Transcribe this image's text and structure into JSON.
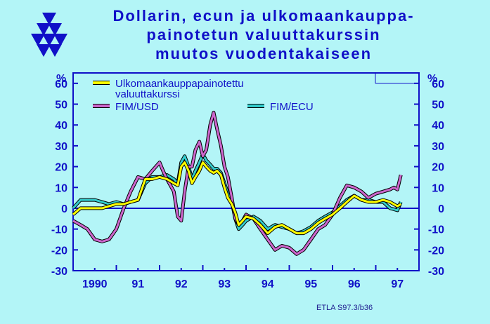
{
  "title": {
    "line1": "Dollarin, ecun ja ulkomaankauppa-",
    "line2": "painotetun valuuttakurssin",
    "line3": "muutos vuodentakaiseen"
  },
  "credit": "ETLA S97.3/b36",
  "colors": {
    "background": "#b3f5f7",
    "frame": "#1010c8",
    "title": "#1010c8",
    "weighted": "#ffff00",
    "usd": "#cc66cc",
    "ecu": "#33cccc"
  },
  "chart_data": {
    "type": "line",
    "y_unit_left": "%",
    "y_unit_right": "%",
    "ylim": [
      -30,
      65
    ],
    "yticks": [
      -30,
      -20,
      -10,
      0,
      10,
      20,
      30,
      40,
      50,
      60
    ],
    "ytick_labels": [
      "-30",
      "-20",
      "-10",
      "0",
      "10",
      "20",
      "30",
      "40",
      "50",
      "60"
    ],
    "xlim": [
      1989.5,
      1997.5
    ],
    "xtick_labels": [
      "1990",
      "91",
      "92",
      "93",
      "94",
      "95",
      "96",
      "97"
    ],
    "xtick_positions": [
      1990,
      1991,
      1992,
      1993,
      1994,
      1995,
      1996,
      1997
    ],
    "legend": [
      {
        "name": "Ulkomaankauppapainotettu",
        "name2": "valuuttakurssi",
        "key": "weighted"
      },
      {
        "name": "FIM/USD",
        "key": "usd"
      },
      {
        "name": "FIM/ECU",
        "key": "ecu"
      }
    ],
    "series": [
      {
        "key": "weighted",
        "name": "Ulkomaankauppapainotettu valuuttakurssi",
        "color": "#ffff00",
        "x": [
          1989.5,
          1989.67,
          1989.83,
          1990.0,
          1990.17,
          1990.33,
          1990.5,
          1990.67,
          1990.83,
          1991.0,
          1991.17,
          1991.33,
          1991.5,
          1991.67,
          1991.83,
          1991.92,
          1992.0,
          1992.08,
          1992.17,
          1992.25,
          1992.33,
          1992.42,
          1992.5,
          1992.58,
          1992.67,
          1992.75,
          1992.83,
          1992.92,
          1993.0,
          1993.08,
          1993.17,
          1993.25,
          1993.33,
          1993.42,
          1993.5,
          1993.67,
          1993.83,
          1994.0,
          1994.17,
          1994.33,
          1994.5,
          1994.67,
          1994.83,
          1995.0,
          1995.17,
          1995.33,
          1995.5,
          1995.67,
          1995.83,
          1996.0,
          1996.17,
          1996.33,
          1996.5,
          1996.67,
          1996.83,
          1997.0,
          1997.08
        ],
        "values": [
          -3,
          0,
          0,
          0,
          0,
          1,
          2,
          2,
          3,
          4,
          14,
          14,
          15,
          14,
          12,
          11,
          20,
          22,
          18,
          12,
          15,
          18,
          22,
          20,
          18,
          17,
          18,
          16,
          10,
          5,
          2,
          -2,
          -8,
          -6,
          -4,
          -5,
          -8,
          -12,
          -9,
          -8,
          -10,
          -12,
          -12,
          -10,
          -7,
          -5,
          -3,
          0,
          3,
          6,
          4,
          3,
          3,
          4,
          3,
          1,
          2
        ]
      },
      {
        "key": "usd",
        "name": "FIM/USD",
        "color": "#cc66cc",
        "x": [
          1989.5,
          1989.67,
          1989.83,
          1990.0,
          1990.17,
          1990.33,
          1990.5,
          1990.67,
          1990.83,
          1991.0,
          1991.17,
          1991.33,
          1991.5,
          1991.58,
          1991.67,
          1991.83,
          1991.92,
          1992.0,
          1992.08,
          1992.17,
          1992.25,
          1992.33,
          1992.42,
          1992.5,
          1992.58,
          1992.67,
          1992.75,
          1992.83,
          1992.92,
          1993.0,
          1993.08,
          1993.17,
          1993.25,
          1993.33,
          1993.42,
          1993.5,
          1993.67,
          1993.83,
          1994.0,
          1994.17,
          1994.33,
          1994.5,
          1994.67,
          1994.83,
          1995.0,
          1995.17,
          1995.33,
          1995.5,
          1995.67,
          1995.83,
          1996.0,
          1996.17,
          1996.33,
          1996.5,
          1996.67,
          1996.83,
          1996.92,
          1997.0,
          1997.08
        ],
        "values": [
          -6,
          -8,
          -10,
          -15,
          -16,
          -15,
          -10,
          0,
          8,
          15,
          14,
          18,
          22,
          18,
          14,
          8,
          -4,
          -6,
          8,
          20,
          20,
          28,
          32,
          25,
          28,
          40,
          46,
          38,
          30,
          20,
          15,
          5,
          -5,
          -8,
          -6,
          -3,
          -5,
          -10,
          -15,
          -20,
          -18,
          -19,
          -22,
          -20,
          -15,
          -10,
          -8,
          -3,
          5,
          11,
          10,
          8,
          5,
          7,
          8,
          9,
          10,
          9,
          16
        ]
      },
      {
        "key": "ecu",
        "name": "FIM/ECU",
        "color": "#33cccc",
        "x": [
          1989.5,
          1989.67,
          1989.83,
          1990.0,
          1990.17,
          1990.33,
          1990.5,
          1990.67,
          1990.83,
          1991.0,
          1991.17,
          1991.33,
          1991.5,
          1991.67,
          1991.83,
          1991.92,
          1992.0,
          1992.08,
          1992.17,
          1992.25,
          1992.33,
          1992.42,
          1992.5,
          1992.58,
          1992.67,
          1992.75,
          1992.83,
          1992.92,
          1993.0,
          1993.08,
          1993.17,
          1993.25,
          1993.33,
          1993.42,
          1993.5,
          1993.67,
          1993.83,
          1994.0,
          1994.17,
          1994.33,
          1994.5,
          1994.67,
          1994.83,
          1995.0,
          1995.17,
          1995.33,
          1995.5,
          1995.67,
          1995.83,
          1996.0,
          1996.17,
          1996.33,
          1996.5,
          1996.67,
          1996.83,
          1997.0,
          1997.08
        ],
        "values": [
          0,
          4,
          4,
          4,
          3,
          2,
          3,
          2,
          3,
          4,
          12,
          15,
          15,
          16,
          14,
          12,
          22,
          25,
          20,
          14,
          18,
          22,
          26,
          23,
          21,
          19,
          19,
          17,
          12,
          7,
          3,
          -5,
          -10,
          -8,
          -6,
          -4,
          -6,
          -10,
          -8,
          -9,
          -10,
          -12,
          -11,
          -9,
          -6,
          -4,
          -2,
          1,
          4,
          6,
          4,
          4,
          3,
          3,
          0,
          -1,
          3
        ]
      }
    ]
  }
}
